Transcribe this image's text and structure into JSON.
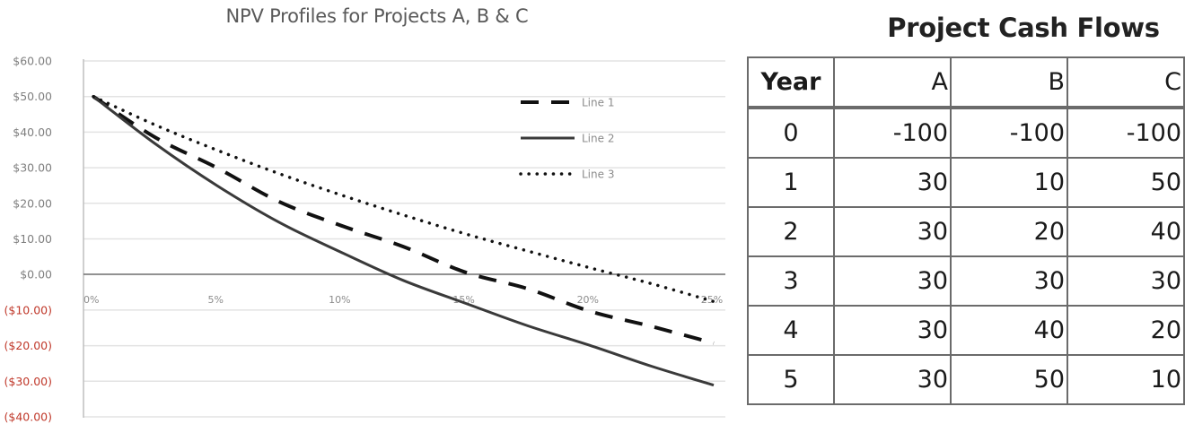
{
  "chart_data": {
    "type": "line",
    "title": "NPV Profiles for Projects A, B & C",
    "xlabel": "",
    "ylabel": "",
    "x_tick_labels": [
      "0%",
      "5%",
      "10%",
      "15%",
      "20%",
      "25%"
    ],
    "y_tick_labels": [
      "$60.00",
      "$50.00",
      "$40.00",
      "$30.00",
      "$20.00",
      "$10.00",
      "$0.00",
      "($10.00)",
      "($20.00)",
      "($30.00)",
      "($40.00)"
    ],
    "xlim": [
      0,
      25
    ],
    "ylim": [
      -40,
      60
    ],
    "grid": true,
    "legend_position": "upper right (inside plot)",
    "negative_tick_color": "#c0392b",
    "positive_tick_color": "#7f7f7f",
    "x": [
      0,
      2.5,
      5,
      7.5,
      10,
      12.5,
      15,
      17.5,
      20,
      22.5,
      25
    ],
    "series": [
      {
        "name": "Line 1",
        "style": "dashed",
        "values": [
          50.0,
          38.5,
          29.9,
          20.4,
          13.7,
          7.8,
          0.6,
          -4.0,
          -10.3,
          -14.6,
          -19.3
        ]
      },
      {
        "name": "Line 2",
        "style": "solid",
        "values": [
          50.0,
          36.7,
          24.9,
          14.6,
          6.2,
          -1.7,
          -8.1,
          -14.4,
          -19.9,
          -25.8,
          -31.1
        ]
      },
      {
        "name": "Line 3",
        "style": "dotted",
        "values": [
          50.0,
          42.0,
          34.9,
          28.3,
          22.3,
          16.7,
          11.4,
          6.6,
          1.9,
          -2.6,
          -7.6
        ]
      }
    ]
  },
  "chart": {
    "title": "NPV Profiles for Projects A, B & C",
    "legend": [
      {
        "label": "Line 1",
        "style": "dashed"
      },
      {
        "label": "Line 2",
        "style": "solid"
      },
      {
        "label": "Line 3",
        "style": "dotted"
      }
    ]
  },
  "table": {
    "title": "Project Cash Flows",
    "headers": [
      "Year",
      "A",
      "B",
      "C"
    ],
    "rows": [
      [
        "0",
        "-100",
        "-100",
        "-100"
      ],
      [
        "1",
        "30",
        "10",
        "50"
      ],
      [
        "2",
        "30",
        "20",
        "40"
      ],
      [
        "3",
        "30",
        "30",
        "30"
      ],
      [
        "4",
        "30",
        "40",
        "20"
      ],
      [
        "5",
        "30",
        "50",
        "10"
      ]
    ]
  }
}
